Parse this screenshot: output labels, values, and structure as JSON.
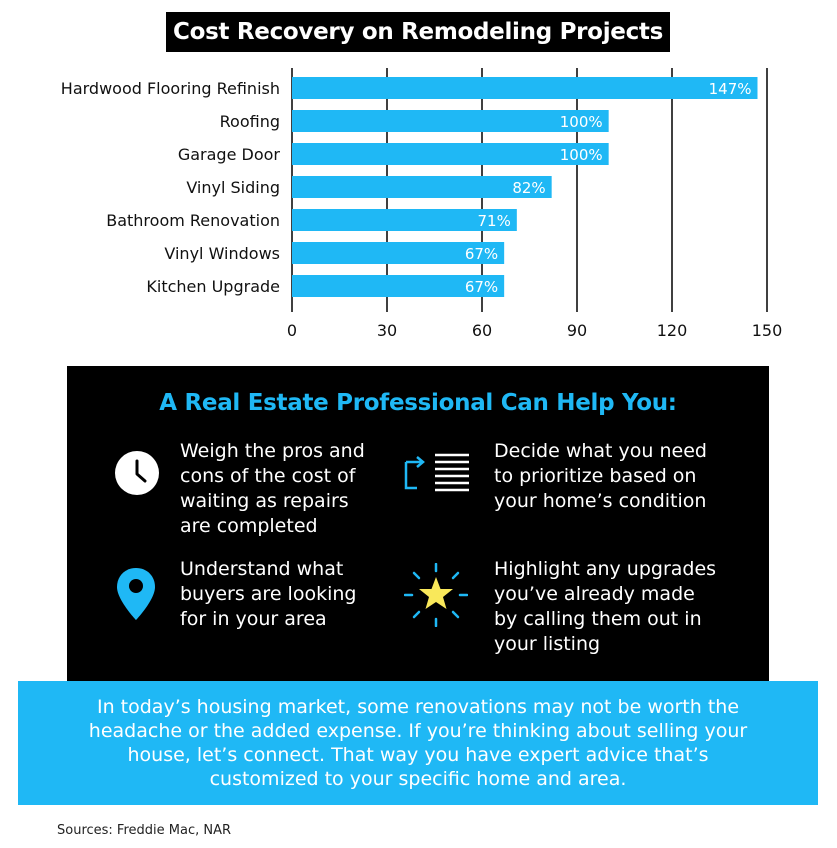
{
  "title": "Cost Recovery on Remodeling Projects",
  "chart_data": {
    "type": "bar",
    "orientation": "horizontal",
    "categories": [
      "Hardwood Flooring Refinish",
      "Roofing",
      "Garage Door",
      "Vinyl Siding",
      "Bathroom Renovation",
      "Vinyl Windows",
      "Kitchen Upgrade"
    ],
    "values": [
      147,
      100,
      100,
      82,
      71,
      67,
      67
    ],
    "data_labels": [
      "147%",
      "100%",
      "100%",
      "82%",
      "71%",
      "67%",
      "67%"
    ],
    "xticks": [
      "0",
      "30",
      "60",
      "90",
      "120",
      "150"
    ],
    "xlim": [
      0,
      150
    ],
    "grid": true,
    "bar_color": "#1fb8f5",
    "grid_color": "#000000",
    "xlabel": "",
    "ylabel": ""
  },
  "panel": {
    "heading": "A Real Estate Professional Can Help You:",
    "items": [
      {
        "icon": "clock-icon",
        "text": "Weigh the pros and\ncons of the cost of\nwaiting as repairs\nare completed"
      },
      {
        "icon": "checklist-icon",
        "text": "Decide what you need\nto prioritize based on\nyour home’s condition"
      },
      {
        "icon": "map-pin-icon",
        "text": "Understand what\nbuyers are looking\nfor in your area"
      },
      {
        "icon": "star-icon",
        "text": "Highlight any upgrades\nyou’ve already made\nby calling them out in\nyour listing"
      }
    ]
  },
  "banner": {
    "text": "In today’s housing market, some renovations may not be worth the headache or the added expense. If you’re thinking about selling your house, let’s connect. That way you have expert advice that’s customized to your specific home and area."
  },
  "sources": "Sources: Freddie Mac, NAR",
  "colors": {
    "accent": "#1fb8f5",
    "star": "#f9e85a",
    "panel_bg": "#000000"
  }
}
